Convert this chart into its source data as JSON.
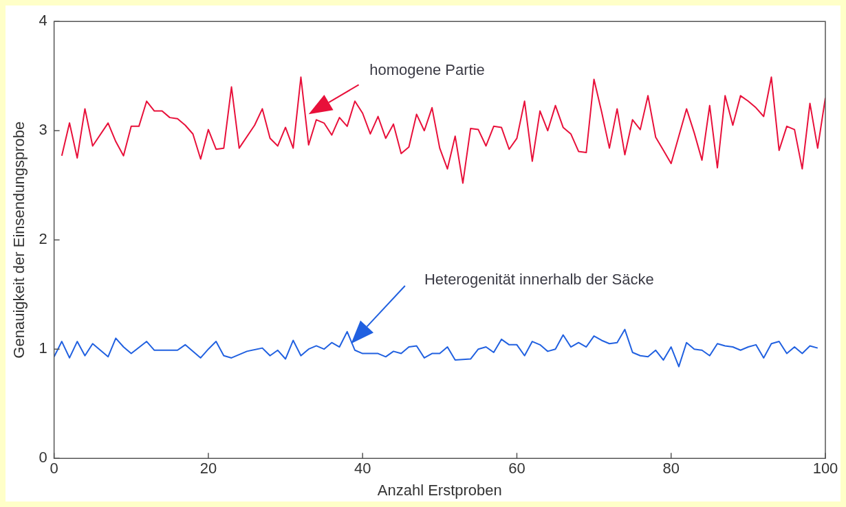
{
  "chart_data": {
    "type": "line",
    "xlabel": "Anzahl Erstproben",
    "ylabel": "Genauigkeit der Einsendungsprobe",
    "xlim": [
      0,
      100
    ],
    "xticks": [
      0,
      20,
      40,
      60,
      80,
      100
    ],
    "ylim": [
      0,
      4
    ],
    "yticks": [
      0,
      1,
      2,
      3,
      4
    ],
    "grid": false,
    "legend": false,
    "marker": "none",
    "line_style": "solid",
    "series": [
      {
        "color": "#e8103a",
        "x": [
          1,
          2,
          3,
          4,
          5,
          7,
          8,
          9,
          10,
          11,
          12,
          13,
          14,
          15,
          16,
          17,
          18,
          19,
          20,
          21,
          22,
          23,
          24,
          26,
          27,
          28,
          29,
          30,
          31,
          32,
          33,
          34,
          35,
          36,
          37,
          38,
          39,
          40,
          41,
          42,
          43,
          44,
          45,
          46,
          47,
          48,
          49,
          50,
          51,
          52,
          53,
          54,
          55,
          56,
          57,
          58,
          59,
          60,
          61,
          62,
          63,
          64,
          65,
          66,
          67,
          68,
          69,
          70,
          71,
          72,
          73,
          74,
          75,
          76,
          77,
          78,
          79,
          80,
          81,
          82,
          83,
          84,
          85,
          86,
          87,
          88,
          89,
          90,
          91,
          92,
          93,
          94,
          95,
          96,
          97,
          98,
          99,
          100
        ],
        "values": [
          2.77,
          3.07,
          2.75,
          3.2,
          2.86,
          3.07,
          2.9,
          2.77,
          3.04,
          3.04,
          3.27,
          3.18,
          3.18,
          3.12,
          3.11,
          3.05,
          2.97,
          2.74,
          3.01,
          2.83,
          2.84,
          3.4,
          2.84,
          3.05,
          3.2,
          2.93,
          2.86,
          3.03,
          2.84,
          3.49,
          2.87,
          3.1,
          3.07,
          2.96,
          3.12,
          3.04,
          3.27,
          3.16,
          2.97,
          3.13,
          2.93,
          3.06,
          2.79,
          2.85,
          3.15,
          3.0,
          3.21,
          2.84,
          2.65,
          2.95,
          2.52,
          3.02,
          3.01,
          2.86,
          3.04,
          3.03,
          2.83,
          2.93,
          3.27,
          2.72,
          3.18,
          3.0,
          3.23,
          3.03,
          2.97,
          2.81,
          2.8,
          3.47,
          3.17,
          2.84,
          3.2,
          2.78,
          3.1,
          3.01,
          3.32,
          2.94,
          2.82,
          2.7,
          2.95,
          3.2,
          2.98,
          2.73,
          3.23,
          2.66,
          3.32,
          3.05,
          3.32,
          3.27,
          3.21,
          3.13,
          3.49,
          2.82,
          3.04,
          3.01,
          2.65,
          3.25,
          2.84,
          3.3
        ]
      },
      {
        "color": "#2060e0",
        "x": [
          0,
          1,
          2,
          3,
          4,
          5,
          7,
          8,
          9,
          10,
          12,
          13,
          16,
          17,
          19,
          20,
          21,
          22,
          23,
          25,
          27,
          28,
          29,
          30,
          31,
          32,
          33,
          34,
          35,
          36,
          37,
          38,
          39,
          40,
          42,
          43,
          44,
          45,
          46,
          47,
          48,
          49,
          50,
          51,
          52,
          54,
          55,
          56,
          57,
          58,
          59,
          60,
          61,
          62,
          63,
          64,
          65,
          66,
          67,
          68,
          69,
          70,
          71,
          72,
          73,
          74,
          75,
          76,
          77,
          78,
          79,
          80,
          81,
          82,
          83,
          84,
          85,
          86,
          87,
          88,
          89,
          90,
          91,
          92,
          93,
          94,
          95,
          96,
          97,
          98,
          99
        ],
        "values": [
          0.93,
          1.07,
          0.92,
          1.07,
          0.94,
          1.05,
          0.93,
          1.1,
          1.02,
          0.96,
          1.07,
          0.99,
          0.99,
          1.04,
          0.92,
          1.0,
          1.07,
          0.94,
          0.92,
          0.98,
          1.01,
          0.94,
          0.99,
          0.91,
          1.08,
          0.94,
          1.0,
          1.03,
          1.0,
          1.06,
          1.02,
          1.16,
          0.99,
          0.96,
          0.96,
          0.93,
          0.98,
          0.96,
          1.02,
          1.03,
          0.92,
          0.96,
          0.96,
          1.02,
          0.9,
          0.91,
          1.0,
          1.02,
          0.97,
          1.09,
          1.04,
          1.04,
          0.94,
          1.07,
          1.04,
          0.98,
          1.0,
          1.13,
          1.02,
          1.06,
          1.02,
          1.12,
          1.08,
          1.05,
          1.06,
          1.18,
          0.97,
          0.94,
          0.93,
          0.99,
          0.9,
          1.02,
          0.84,
          1.06,
          1.0,
          0.99,
          0.94,
          1.05,
          1.03,
          1.02,
          0.99,
          1.02,
          1.04,
          0.92,
          1.05,
          1.07,
          0.96,
          1.02,
          0.96,
          1.03,
          1.01
        ]
      }
    ],
    "annotations": [
      "homogene Partie",
      "Heterogenität innerhalb der Säcke"
    ]
  }
}
